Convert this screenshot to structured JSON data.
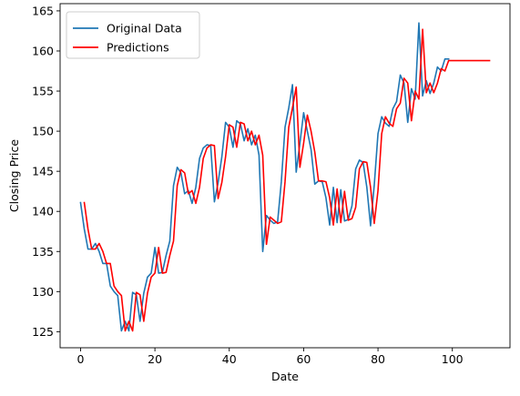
{
  "chart_data": {
    "type": "line",
    "xlabel": "Date",
    "ylabel": "Closing Price",
    "xlim": [
      -5.5,
      115.5
    ],
    "ylim": [
      123.0,
      165.9
    ],
    "xticks": [
      0,
      20,
      40,
      60,
      80,
      100
    ],
    "yticks": [
      125,
      130,
      135,
      140,
      145,
      150,
      155,
      160,
      165
    ],
    "legend_position": "upper-left",
    "grid": false,
    "series": [
      {
        "name": "Original Data",
        "color": "#1f77b4",
        "x": [
          0,
          1,
          2,
          3,
          4,
          5,
          6,
          7,
          8,
          9,
          10,
          11,
          12,
          13,
          14,
          15,
          16,
          17,
          18,
          19,
          20,
          21,
          22,
          23,
          24,
          25,
          26,
          27,
          28,
          29,
          30,
          31,
          32,
          33,
          34,
          35,
          36,
          37,
          38,
          39,
          40,
          41,
          42,
          43,
          44,
          45,
          46,
          47,
          48,
          49,
          50,
          51,
          52,
          53,
          54,
          55,
          56,
          57,
          58,
          59,
          60,
          61,
          62,
          63,
          64,
          65,
          66,
          67,
          68,
          69,
          70,
          71,
          72,
          73,
          74,
          75,
          76,
          77,
          78,
          79,
          80,
          81,
          82,
          83,
          84,
          85,
          86,
          87,
          88,
          89,
          90,
          91,
          92,
          93,
          94,
          95,
          96,
          97,
          98,
          99
        ],
        "y": [
          141.1,
          137.8,
          135.3,
          135.3,
          136.0,
          135.0,
          133.5,
          133.5,
          130.7,
          130.0,
          129.5,
          125.1,
          126.3,
          125.1,
          129.9,
          129.6,
          126.3,
          129.8,
          131.8,
          132.3,
          135.5,
          132.3,
          132.4,
          134.5,
          136.3,
          143.2,
          145.5,
          144.8,
          142.2,
          142.6,
          141.0,
          143.0,
          146.6,
          147.9,
          148.3,
          148.2,
          141.2,
          143.6,
          146.8,
          151.1,
          150.5,
          148.0,
          151.3,
          150.9,
          148.8,
          150.3,
          148.3,
          149.5,
          147.0,
          135.0,
          139.5,
          138.9,
          138.5,
          138.7,
          143.7,
          150.5,
          152.9,
          155.8,
          144.9,
          148.5,
          152.3,
          150.0,
          147.7,
          143.4,
          143.8,
          143.7,
          141.7,
          138.3,
          143.0,
          138.6,
          142.7,
          138.8,
          139.0,
          140.7,
          145.3,
          146.4,
          146.1,
          143.0,
          138.2,
          143.3,
          149.7,
          151.8,
          151.0,
          150.6,
          152.8,
          153.7,
          157.0,
          156.0,
          151.1,
          155.3,
          154.0,
          163.5,
          154.4,
          156.3,
          154.7,
          156.0,
          158.0,
          157.5,
          159.0,
          159.0
        ]
      },
      {
        "name": "Predictions",
        "color": "#ff0000",
        "x": [
          1,
          2,
          3,
          4,
          5,
          6,
          7,
          8,
          9,
          10,
          11,
          12,
          13,
          14,
          15,
          16,
          17,
          18,
          19,
          20,
          21,
          22,
          23,
          24,
          25,
          26,
          27,
          28,
          29,
          30,
          31,
          32,
          33,
          34,
          35,
          36,
          37,
          38,
          39,
          40,
          41,
          42,
          43,
          44,
          45,
          46,
          47,
          48,
          49,
          50,
          51,
          52,
          53,
          54,
          55,
          56,
          57,
          58,
          59,
          60,
          61,
          62,
          63,
          64,
          65,
          66,
          67,
          68,
          69,
          70,
          71,
          72,
          73,
          74,
          75,
          76,
          77,
          78,
          79,
          80,
          81,
          82,
          83,
          84,
          85,
          86,
          87,
          88,
          89,
          90,
          91,
          92,
          93,
          94,
          95,
          96,
          97,
          98,
          99,
          100,
          101,
          102,
          103,
          104,
          105,
          106,
          107,
          108,
          109,
          110
        ],
        "y": [
          141.1,
          137.8,
          135.3,
          135.3,
          136.0,
          135.0,
          133.5,
          133.5,
          130.7,
          130.0,
          129.5,
          125.1,
          126.3,
          125.1,
          129.9,
          129.6,
          126.3,
          129.8,
          131.8,
          132.3,
          135.5,
          132.3,
          132.4,
          134.5,
          136.3,
          143.2,
          145.2,
          144.8,
          142.2,
          142.6,
          141.0,
          143.0,
          146.6,
          147.9,
          148.3,
          148.2,
          141.6,
          143.6,
          146.8,
          150.8,
          150.5,
          148.0,
          151.1,
          150.9,
          148.8,
          150.0,
          148.3,
          149.5,
          147.0,
          135.9,
          139.3,
          138.9,
          138.5,
          138.7,
          143.7,
          150.5,
          152.9,
          155.5,
          145.5,
          148.5,
          152.0,
          150.0,
          147.4,
          143.8,
          143.8,
          143.7,
          141.7,
          138.3,
          142.8,
          138.6,
          142.5,
          138.9,
          139.1,
          140.5,
          145.3,
          146.2,
          146.1,
          143.0,
          138.5,
          142.6,
          149.7,
          151.8,
          151.0,
          150.6,
          152.8,
          153.5,
          156.6,
          156.0,
          151.3,
          155.0,
          154.0,
          162.7,
          154.8,
          156.0,
          154.8,
          156.0,
          157.8,
          157.5,
          158.8,
          158.8,
          158.8,
          158.8,
          158.8,
          158.8,
          158.8,
          158.8,
          158.8,
          158.8,
          158.8,
          158.8
        ]
      }
    ]
  }
}
